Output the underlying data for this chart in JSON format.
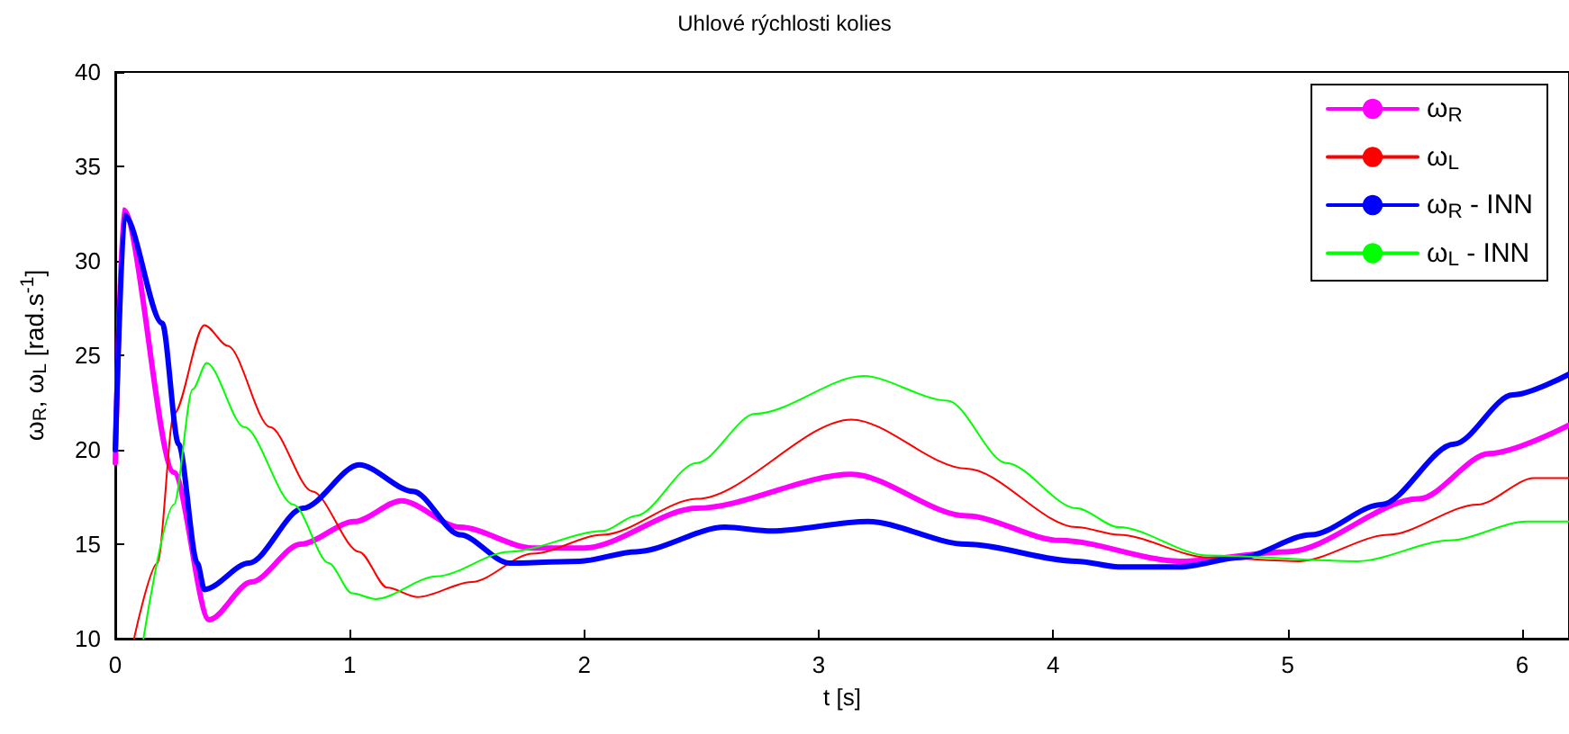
{
  "chart_data": {
    "type": "line",
    "title": "Uhlové rýchlosti kolies",
    "xlabel": "t [s]",
    "ylabel": "ω$_{R}$, ω$_{L}$ [rad.s$^{-1}$]",
    "xlim": [
      0,
      6.2
    ],
    "xticks": [
      0,
      1,
      2,
      3,
      4,
      5,
      6
    ],
    "ylim": [
      10,
      40
    ],
    "yticks": [
      10,
      15,
      20,
      25,
      30,
      35,
      40
    ],
    "grid": false,
    "legend": "top right",
    "marker": "none",
    "line_style": "solid",
    "series": [
      {
        "name": "ω$_{R}$",
        "color": "#ff00ff",
        "x": [
          0,
          0.035,
          0.25,
          0.4,
          0.58,
          0.79,
          1.02,
          1.22,
          1.47,
          1.78,
          2.0,
          2.48,
          3.14,
          3.63,
          4.03,
          4.54,
          5.0,
          5.56,
          5.86,
          6.2
        ],
        "values": [
          19.3,
          32.7,
          18.8,
          11,
          13,
          15,
          16.2,
          17.3,
          15.9,
          14.8,
          14.8,
          16.9,
          18.7,
          16.5,
          15.2,
          14.1,
          14.6,
          17.4,
          19.8,
          21.3
        ]
      },
      {
        "name": "ω$_{L}$",
        "color": "#ff0000",
        "x": [
          0.08,
          0.18,
          0.25,
          0.38,
          0.48,
          0.66,
          0.84,
          1.04,
          1.16,
          1.29,
          1.52,
          1.78,
          2.08,
          2.48,
          3.14,
          3.63,
          4.1,
          4.28,
          4.66,
          5.05,
          5.43,
          5.81,
          6.05,
          6.2
        ],
        "values": [
          10,
          14,
          21.9,
          26.6,
          25.5,
          21.2,
          17.8,
          14.6,
          12.7,
          12.2,
          13,
          14.5,
          15.5,
          17.4,
          21.6,
          19,
          15.9,
          15.5,
          14.3,
          14.1,
          15.5,
          17.1,
          18.5,
          18.5
        ]
      },
      {
        "name": "ω$_{R}$ - INN",
        "color": "#0000ff",
        "x": [
          0,
          0.04,
          0.2,
          0.27,
          0.35,
          0.38,
          0.57,
          0.8,
          1.04,
          1.27,
          1.47,
          1.68,
          1.98,
          2.22,
          2.6,
          2.8,
          3.21,
          3.63,
          4.1,
          4.28,
          4.54,
          4.8,
          5.1,
          5.4,
          5.71,
          5.96,
          6.2
        ],
        "values": [
          20,
          32.4,
          26.7,
          20.3,
          14,
          12.6,
          14,
          16.9,
          19.2,
          17.8,
          15.5,
          14,
          14.1,
          14.6,
          15.9,
          15.7,
          16.2,
          15,
          14.1,
          13.8,
          13.8,
          14.3,
          15.5,
          17.1,
          20.3,
          22.9,
          24.0
        ]
      },
      {
        "name": "ω$_{L}$ - INN",
        "color": "#00ff00",
        "x": [
          0.12,
          0.25,
          0.33,
          0.39,
          0.55,
          0.76,
          0.91,
          1.01,
          1.11,
          1.37,
          1.68,
          2.08,
          2.22,
          2.48,
          2.73,
          3.19,
          3.55,
          3.8,
          4.1,
          4.28,
          4.66,
          5.3,
          5.69,
          6.02,
          6.2
        ],
        "values": [
          10,
          17.1,
          23.2,
          24.6,
          21.2,
          17.1,
          14,
          12.4,
          12.1,
          13.3,
          14.6,
          15.7,
          16.5,
          19.3,
          21.9,
          23.9,
          22.6,
          19.3,
          16.9,
          15.9,
          14.4,
          14.1,
          15.2,
          16.2,
          16.2
        ]
      }
    ]
  }
}
